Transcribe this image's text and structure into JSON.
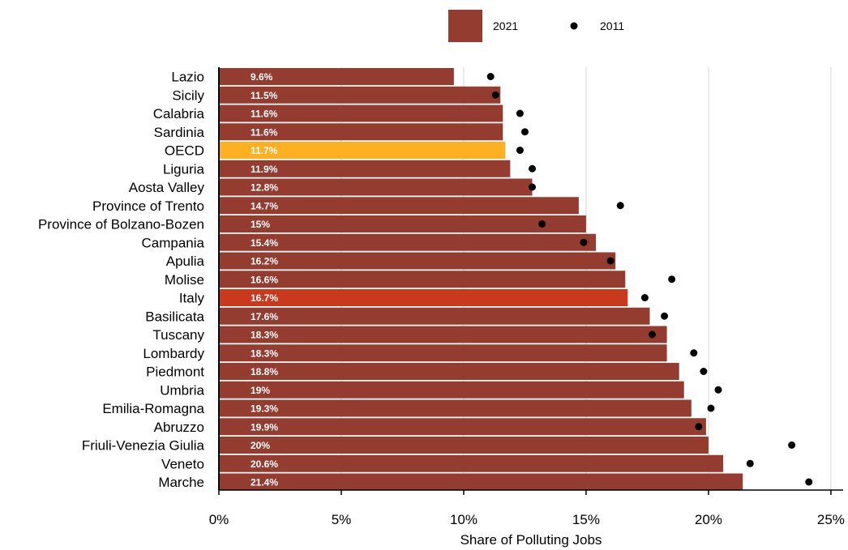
{
  "chart_data": {
    "type": "bar",
    "orientation": "horizontal",
    "xlabel": "Share of Polluting Jobs",
    "xlim": [
      0,
      25.5
    ],
    "xticks": [
      0,
      5,
      10,
      15,
      20,
      25
    ],
    "xtick_labels": [
      "0%",
      "5%",
      "10%",
      "15%",
      "20%",
      "25%"
    ],
    "grid": "vertical",
    "legend": {
      "placement": "top-center"
    },
    "categories": [
      "Lazio",
      "Sicily",
      "Calabria",
      "Sardinia",
      "OECD",
      "Liguria",
      "Aosta Valley",
      "Province of Trento",
      "Province of Bolzano-Bozen",
      "Campania",
      "Apulia",
      "Molise",
      "Italy",
      "Basilicata",
      "Tuscany",
      "Lombardy",
      "Piedmont",
      "Umbria",
      "Emilia-Romagna",
      "Abruzzo",
      "Friuli-Venezia Giulia",
      "Veneto",
      "Marche"
    ],
    "series": [
      {
        "name": "2021",
        "kind": "bar",
        "color": "#943C2F",
        "values": [
          9.6,
          11.5,
          11.6,
          11.6,
          11.7,
          11.9,
          12.8,
          14.7,
          15.0,
          15.4,
          16.2,
          16.6,
          16.7,
          17.6,
          18.3,
          18.3,
          18.8,
          19.0,
          19.3,
          19.9,
          20.0,
          20.6,
          21.4
        ],
        "labels": [
          "9.6%",
          "11.5%",
          "11.6%",
          "11.6%",
          "11.7%",
          "11.9%",
          "12.8%",
          "14.7%",
          "15%",
          "15.4%",
          "16.2%",
          "16.6%",
          "16.7%",
          "17.6%",
          "18.3%",
          "18.3%",
          "18.8%",
          "19%",
          "19.3%",
          "19.9%",
          "20%",
          "20.6%",
          "21.4%"
        ]
      },
      {
        "name": "2011",
        "kind": "dot",
        "color": "#000000",
        "values": [
          11.1,
          11.3,
          12.3,
          12.5,
          12.3,
          12.8,
          12.8,
          16.4,
          13.2,
          14.9,
          16.0,
          18.5,
          17.4,
          18.2,
          17.7,
          19.4,
          19.8,
          20.4,
          20.1,
          19.6,
          23.4,
          21.7,
          24.1
        ]
      }
    ],
    "highlights": [
      {
        "category": "OECD",
        "color": "#FDB022"
      },
      {
        "category": "Italy",
        "color": "#C9391E"
      }
    ]
  }
}
